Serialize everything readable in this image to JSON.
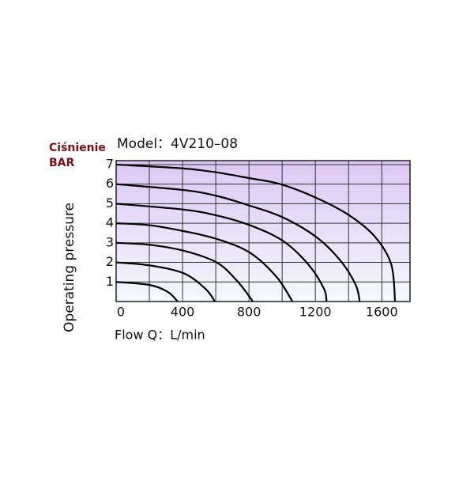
{
  "chart_data": {
    "type": "line",
    "title": "Model：4V210–08",
    "annotations": [
      "Ciśnienie",
      "BAR"
    ],
    "xlabel": "Flow Q：L/min",
    "ylabel": "Operating pressure",
    "xlim": [
      0,
      1770
    ],
    "ylim": [
      0,
      7.2
    ],
    "xticks": [
      0,
      400,
      800,
      1200,
      1600
    ],
    "xminorticks": [
      200,
      600,
      1000,
      1400
    ],
    "yticks": [
      1,
      2,
      3,
      4,
      5,
      6,
      7
    ],
    "grid": true,
    "color": "#000000",
    "series": [
      {
        "x": [
          0,
          405,
          605,
          805,
          990,
          1205,
          1405,
          1560,
          1657,
          1680
        ],
        "values": [
          7,
          6.8,
          6.6,
          6.3,
          6.0,
          5.3,
          4.4,
          3.3,
          1.9,
          0
        ]
      },
      {
        "x": [
          0,
          405,
          605,
          805,
          1005,
          1205,
          1350,
          1443,
          1467
        ],
        "values": [
          6,
          5.7,
          5.4,
          4.9,
          4.3,
          3.3,
          2.1,
          0.85,
          0
        ]
      },
      {
        "x": [
          0,
          405,
          605,
          805,
          1005,
          1157,
          1252,
          1267
        ],
        "values": [
          5,
          4.7,
          4.4,
          3.9,
          3.1,
          1.9,
          0.65,
          0
        ]
      },
      {
        "x": [
          0,
          200,
          405,
          605,
          805,
          967,
          1062
        ],
        "values": [
          4,
          3.9,
          3.6,
          3.2,
          2.5,
          1.25,
          0
        ]
      },
      {
        "x": [
          0,
          200,
          405,
          605,
          729,
          824
        ],
        "values": [
          3,
          2.9,
          2.6,
          2.0,
          1.05,
          0
        ]
      },
      {
        "x": [
          0,
          200,
          405,
          538,
          595
        ],
        "values": [
          2,
          1.85,
          1.45,
          0.65,
          0
        ]
      },
      {
        "x": [
          0,
          200,
          310,
          371
        ],
        "values": [
          1,
          0.85,
          0.5,
          0
        ]
      }
    ]
  }
}
